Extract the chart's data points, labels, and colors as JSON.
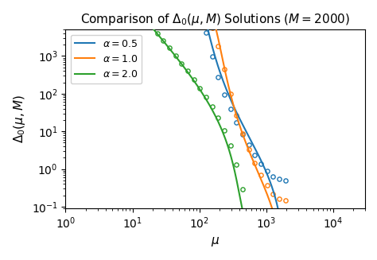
{
  "title": "Comparison of $\\Delta_0(\\mu, M)$ Solutions ($M = 2000$)",
  "xlabel": "$\\mu$",
  "ylabel": "$\\Delta_0(\\mu, M)$",
  "M": 2000,
  "alphas": [
    0.5,
    1.0,
    2.0
  ],
  "colors": [
    "#1f77b4",
    "#ff7f0e",
    "#2ca02c"
  ],
  "legend_labels": [
    "$\\alpha = 0.5$",
    "$\\alpha = 1.0$",
    "$\\alpha = 2.0$"
  ],
  "xlim": [
    1.0,
    30000
  ],
  "ylim": [
    0.09,
    5000
  ],
  "figsize": [
    4.74,
    3.27
  ],
  "dpi": 100,
  "mu_log_start": 0.0,
  "mu_log_end": 4.47,
  "n_line": 800,
  "n_dots": 50
}
